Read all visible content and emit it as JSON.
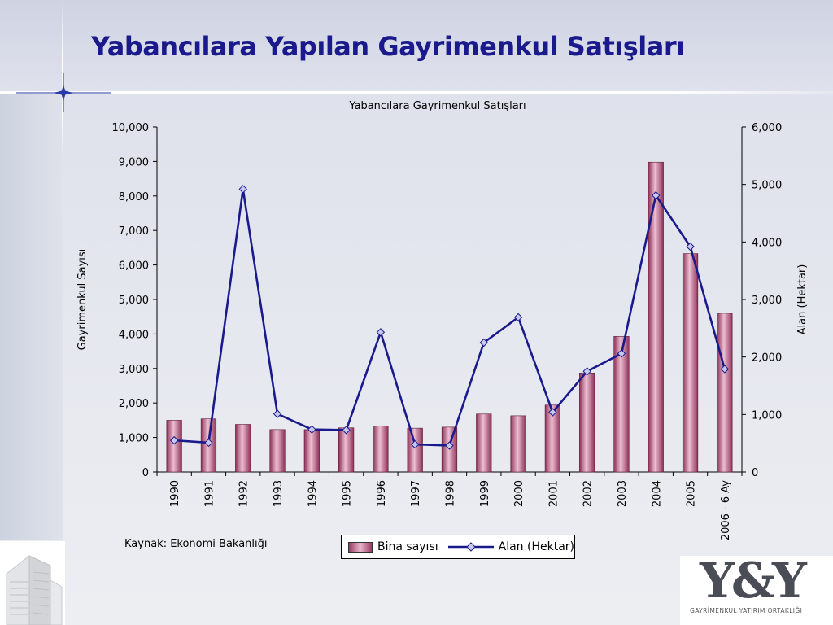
{
  "slide": {
    "title": "Yabancılara Yapılan Gayrimenkul Satışları",
    "source_note": "Kaynak: Ekonomi Bakanlığı"
  },
  "logo": {
    "mark": "Y&Y",
    "subtitle": "GAYRİMENKUL YATIRIM ORTAKLIĞI"
  },
  "colors": {
    "title": "#1a1a8c",
    "line": "#1a1a8c",
    "marker_fill": "#c8c8f0",
    "bar_dark": "#9a3a62",
    "bar_light": "#e9b7cc"
  },
  "chart_data": {
    "type": "bar",
    "title": "Yabancılara Gayrimenkul Satışları",
    "categories": [
      "1990",
      "1991",
      "1992",
      "1993",
      "1994",
      "1995",
      "1996",
      "1997",
      "1998",
      "1999",
      "2000",
      "2001",
      "2002",
      "2003",
      "2004",
      "2005",
      "2006 - 6 Ay"
    ],
    "series": [
      {
        "name": "Bina sayısı",
        "type": "bar",
        "axis": "left",
        "values": [
          1500,
          1540,
          1380,
          1230,
          1230,
          1280,
          1330,
          1270,
          1300,
          1680,
          1630,
          1940,
          2870,
          3930,
          8980,
          6330,
          4600
        ]
      },
      {
        "name": "Alan (Hektar)",
        "type": "line",
        "axis": "right",
        "values": [
          550,
          510,
          4920,
          1010,
          740,
          730,
          2430,
          480,
          460,
          2250,
          2690,
          1040,
          1750,
          2060,
          4810,
          3920,
          1790
        ]
      }
    ],
    "y_left": {
      "label": "Gayrimenkul Sayısı",
      "min": 0,
      "max": 10000,
      "ticks": [
        "0",
        "1,000",
        "2,000",
        "3,000",
        "4,000",
        "5,000",
        "6,000",
        "7,000",
        "8,000",
        "9,000",
        "10,000"
      ]
    },
    "y_right": {
      "label": "Alan (Hektar)",
      "min": 0,
      "max": 6000,
      "ticks": [
        "0",
        "1,000",
        "2,000",
        "3,000",
        "4,000",
        "5,000",
        "6,000"
      ]
    },
    "grid": false,
    "legend_position": "bottom"
  }
}
